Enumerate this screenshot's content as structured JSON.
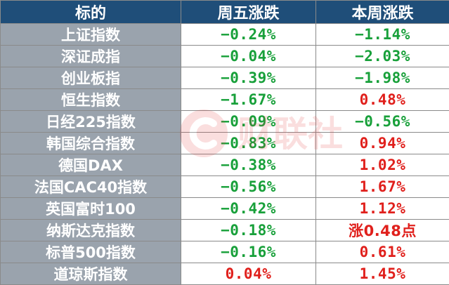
{
  "table": {
    "headers": [
      "标的",
      "周五涨跌",
      "本周涨跌"
    ],
    "rows": [
      {
        "name": "上证指数",
        "fri": "−0.24%",
        "week": "−1.14%",
        "fri_dir": "neg",
        "week_dir": "neg"
      },
      {
        "name": "深证成指",
        "fri": "−0.04%",
        "week": "−2.03%",
        "fri_dir": "neg",
        "week_dir": "neg"
      },
      {
        "name": "创业板指",
        "fri": "−0.39%",
        "week": "−1.98%",
        "fri_dir": "neg",
        "week_dir": "neg"
      },
      {
        "name": "恒生指数",
        "fri": "−1.67%",
        "week": "0.48%",
        "fri_dir": "neg",
        "week_dir": "pos"
      },
      {
        "name": "日经225指数",
        "fri": "−0.09%",
        "week": "−0.56%",
        "fri_dir": "neg",
        "week_dir": "neg"
      },
      {
        "name": "韩国综合指数",
        "fri": "−0.83%",
        "week": "0.94%",
        "fri_dir": "neg",
        "week_dir": "pos"
      },
      {
        "name": "德国DAX",
        "fri": "−0.38%",
        "week": "1.02%",
        "fri_dir": "neg",
        "week_dir": "pos"
      },
      {
        "name": "法国CAC40指数",
        "fri": "−0.56%",
        "week": "1.67%",
        "fri_dir": "neg",
        "week_dir": "pos"
      },
      {
        "name": "英国富时100",
        "fri": "−0.42%",
        "week": "1.12%",
        "fri_dir": "neg",
        "week_dir": "pos"
      },
      {
        "name": "纳斯达克指数",
        "fri": "−0.18%",
        "week": "涨0.48点",
        "fri_dir": "neg",
        "week_dir": "pos"
      },
      {
        "name": "标普500指数",
        "fri": "−0.16%",
        "week": "0.61%",
        "fri_dir": "neg",
        "week_dir": "pos"
      },
      {
        "name": "道琼斯指数",
        "fri": "0.04%",
        "week": "1.45%",
        "fri_dir": "pos",
        "week_dir": "pos"
      }
    ]
  },
  "colors": {
    "header_bg": "#1f4e79",
    "name_bg": "#9aa3ad",
    "negative": "#18a03a",
    "positive": "#e0201c"
  },
  "watermark": {
    "text": "财联社",
    "icon": "cls-logo-icon"
  }
}
